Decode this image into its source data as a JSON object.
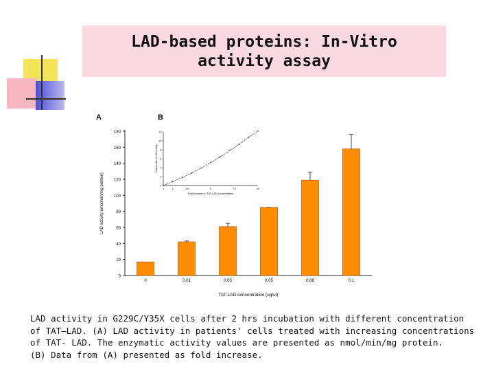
{
  "slide": {
    "title_line1": "LAD-based proteins: In-Vitro",
    "title_line2": "activity assay"
  },
  "caption": {
    "line1": "LAD activity in G229C/Y35X cells after 2 hrs incubation with different concentration",
    "line2": "of TAT–LAD. (A) LAD activity in patients' cells treated with increasing concentrations",
    "line3": "of TAT- LAD. The enzymatic activity values are presented as nmol/min/mg protein.",
    "line4": "(B) Data from (A) presented as fold increase."
  },
  "colors": {
    "bar": "#ff8c00",
    "bar_edge": "#a04a00",
    "title_bg": "#fbd9e3"
  },
  "chart_data": [
    {
      "panel": "A",
      "type": "bar",
      "categories": [
        "0",
        "0.01",
        "0.03",
        "0.05",
        "0.08",
        "0.1"
      ],
      "values": [
        17,
        42,
        61,
        85,
        119,
        158
      ],
      "errors": [
        0,
        1,
        4,
        0,
        10,
        18
      ],
      "xlabel": "TAT-LAD concentration (ug/ul)",
      "ylabel": "LAD activity nmol/min/mg protein)",
      "ylim": [
        0,
        180
      ],
      "yticks": [
        0,
        20,
        40,
        60,
        80,
        100,
        120,
        140,
        160,
        180
      ]
    },
    {
      "panel": "B",
      "type": "line",
      "x": [
        0,
        1,
        2,
        3,
        4,
        5,
        6,
        7,
        8,
        9,
        10
      ],
      "y": [
        0,
        0.9,
        1.8,
        2.8,
        3.9,
        5.1,
        6.4,
        7.8,
        9.2,
        10.8,
        12.2
      ],
      "xticks": [
        "0",
        "1",
        "2.5",
        "5",
        "7.5",
        "10"
      ],
      "ylabel": "Fold increase in LAD activity",
      "xlabel": "Fold increase in TAT-LAD concentration",
      "ylim": [
        0,
        12
      ]
    }
  ]
}
